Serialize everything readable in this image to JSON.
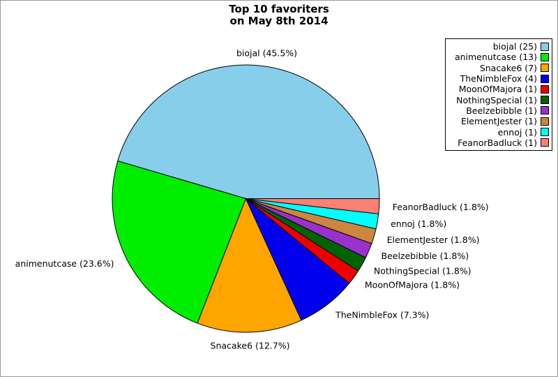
{
  "title": {
    "line1": "Top 10 favoriters",
    "line2": "on May 8th 2014"
  },
  "chart_data": {
    "type": "pie",
    "title": "Top 10 favoriters on May 8th 2014",
    "start_angle_deg": 0,
    "direction": "counterclockwise",
    "legend_position": "top-right",
    "slices": [
      {
        "name": "biojal",
        "count": 25,
        "pct": 45.5,
        "label": "biojal (45.5%)",
        "legend_label": "biojal (25)",
        "color": "#87CEEB"
      },
      {
        "name": "animenutcase",
        "count": 13,
        "pct": 23.6,
        "label": "animenutcase (23.6%)",
        "legend_label": "animenutcase (13)",
        "color": "#00EE00"
      },
      {
        "name": "Snacake6",
        "count": 7,
        "pct": 12.7,
        "label": "Snacake6 (12.7%)",
        "legend_label": "Snacake6 (7)",
        "color": "#FFA500"
      },
      {
        "name": "TheNimbleFox",
        "count": 4,
        "pct": 7.3,
        "label": "TheNimbleFox (7.3%)",
        "legend_label": "TheNimbleFox (4)",
        "color": "#0000EE"
      },
      {
        "name": "MoonOfMajora",
        "count": 1,
        "pct": 1.8,
        "label": "MoonOfMajora (1.8%)",
        "legend_label": "MoonOfMajora (1)",
        "color": "#EE0000"
      },
      {
        "name": "NothingSpecial",
        "count": 1,
        "pct": 1.8,
        "label": "NothingSpecial (1.8%)",
        "legend_label": "NothingSpecial (1)",
        "color": "#006400"
      },
      {
        "name": "Beelzebibble",
        "count": 1,
        "pct": 1.8,
        "label": "Beelzebibble (1.8%)",
        "legend_label": "Beelzebibble (1)",
        "color": "#9932CC"
      },
      {
        "name": "ElementJester",
        "count": 1,
        "pct": 1.8,
        "label": "ElementJester (1.8%)",
        "legend_label": "ElementJester (1)",
        "color": "#CD853F"
      },
      {
        "name": "ennoj",
        "count": 1,
        "pct": 1.8,
        "label": "ennoj (1.8%)",
        "legend_label": "ennoj (1)",
        "color": "#00FFFF"
      },
      {
        "name": "FeanorBadluck",
        "count": 1,
        "pct": 1.8,
        "label": "FeanorBadluck (1.8%)",
        "legend_label": "FeanorBadluck (1)",
        "color": "#FA8072"
      }
    ]
  }
}
